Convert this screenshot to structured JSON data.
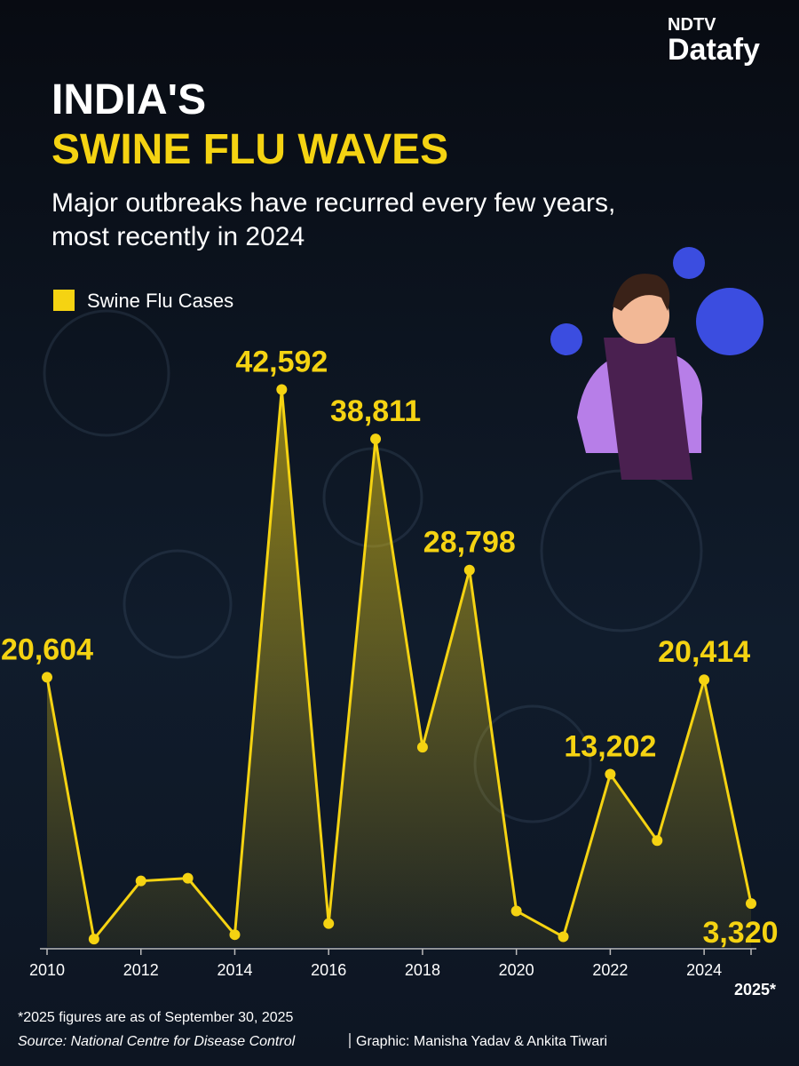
{
  "chart_data": {
    "type": "line",
    "brand": "NDTV",
    "brand_sub": "Datafy",
    "title": "INDIA'S",
    "title_highlight": "SWINE FLU WAVES",
    "subtitle": [
      "Major outbreaks have recurred every few years,",
      "most recently in 2024"
    ],
    "x": [
      2010,
      2011,
      2012,
      2013,
      2014,
      2015,
      2016,
      2017,
      2018,
      2019,
      2020,
      2021,
      2022,
      2023,
      2024,
      2025
    ],
    "series": [
      {
        "name": "Swine Flu Cases",
        "color": "#f5d312",
        "values": [
          20604,
          603,
          5044,
          5253,
          937,
          42592,
          1786,
          38811,
          15266,
          28798,
          2752,
          778,
          13202,
          8125,
          20414,
          3320
        ],
        "value_labels": [
          "20,604",
          null,
          null,
          null,
          null,
          "42,592",
          null,
          "38,811",
          null,
          "28,798",
          null,
          null,
          "13,202",
          null,
          "20,414",
          "3,320"
        ]
      }
    ],
    "xlim": [
      2010,
      2025
    ],
    "xticks": [
      2010,
      2012,
      2014,
      2016,
      2018,
      2020,
      2022,
      2024,
      {
        "value": 2025,
        "label": "2025*"
      }
    ],
    "ylim": [
      0,
      45000
    ],
    "grid": false,
    "footnote": "*2025 figures are as of September 30, 2025",
    "source": "Source: National Centre for Disease Control",
    "credit": "Graphic: Manisha Yadav & Ankita Tiwari"
  }
}
